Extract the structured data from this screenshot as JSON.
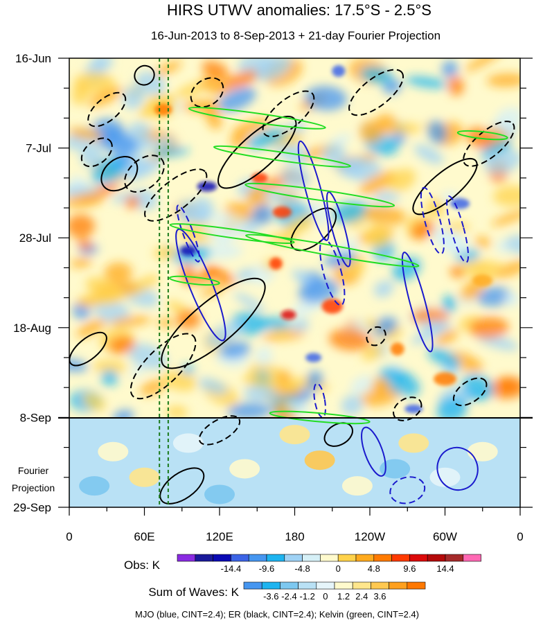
{
  "chart_data": {
    "type": "heatmap",
    "title": "HIRS UTWV anomalies: 17.5°S - 2.5°S",
    "subtitle": "16-Jun-2013 to 8-Sep-2013 + 21-day Fourier Projection",
    "xlabel": "",
    "ylabel": "",
    "x_tick_labels": [
      "0",
      "60E",
      "120E",
      "180",
      "120W",
      "60W",
      "0"
    ],
    "x_tick_lon": [
      0,
      60,
      120,
      180,
      240,
      300,
      360
    ],
    "xlim": [
      0,
      360
    ],
    "y_tick_labels": [
      "16-Jun",
      "7-Jul",
      "28-Jul",
      "18-Aug",
      "8-Sep",
      "29-Sep"
    ],
    "y_tick_day": [
      0,
      21,
      42,
      63,
      84,
      105
    ],
    "ylim_days": [
      0,
      105
    ],
    "observation_end_day": 84,
    "projection_label_line1": "Fourier",
    "projection_label_line2": "Projection",
    "reference_longitudes": [
      72,
      79
    ],
    "obs_colorbar": {
      "title": "Obs: K",
      "labels": [
        "-14.4",
        "-9.6",
        "-4.8",
        "0",
        "4.8",
        "9.6",
        "14.4"
      ],
      "colors": [
        "#8a2be2",
        "#1a1a9a",
        "#0a0ab4",
        "#3c64e6",
        "#4696f0",
        "#1eb4f0",
        "#9fd2f5",
        "#d6f0f7",
        "#fffacd",
        "#ffd24b",
        "#ffaa1e",
        "#ff7a00",
        "#ff3a00",
        "#dc0a0a",
        "#b40a0a",
        "#a52a2a",
        "#ff69b4"
      ]
    },
    "waves_colorbar": {
      "title": "Sum of Waves: K",
      "labels": [
        "-3.6",
        "-2.4",
        "-1.2",
        "0",
        "1.2",
        "2.4",
        "3.6"
      ],
      "colors": [
        "#4696f0",
        "#1eb4f0",
        "#7dc8f0",
        "#b9e1f5",
        "#e6f5fa",
        "#fffacd",
        "#ffe68c",
        "#ffc850",
        "#ffa01e",
        "#ff7800"
      ]
    },
    "contour_legend": "MJO (blue, CINT=2.4); ER (black, CINT=2.4); Kelvin (green, CINT=2.4)",
    "series": [
      {
        "name": "MJO",
        "color": "#1a1acd"
      },
      {
        "name": "ER",
        "color": "#000000"
      },
      {
        "name": "Kelvin",
        "color": "#22dd22"
      }
    ]
  }
}
